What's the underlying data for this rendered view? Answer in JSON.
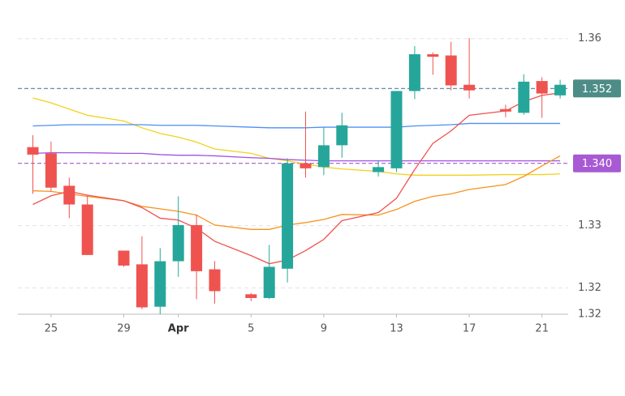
{
  "chart_data": {
    "type": "candlestick",
    "x": [
      "Mar 24",
      "Mar 25",
      "Mar 26",
      "Mar 27",
      "Mar 29",
      "Mar 30",
      "Mar 31",
      "Apr 1",
      "Apr 2",
      "Apr 3",
      "Apr 5",
      "Apr 6",
      "Apr 7",
      "Apr 8",
      "Apr 9",
      "Apr 10",
      "Apr 12",
      "Apr 13",
      "Apr 14",
      "Apr 15",
      "Apr 16",
      "Apr 17",
      "Apr 19",
      "Apr 20",
      "Apr 21",
      "Apr 22"
    ],
    "open": [
      1.3426,
      1.3416,
      1.3364,
      1.3334,
      1.326,
      1.3238,
      1.317,
      1.3243,
      1.3301,
      1.323,
      1.319,
      1.3184,
      1.3231,
      1.34,
      1.3394,
      1.3429,
      1.3386,
      1.3392,
      1.3516,
      1.3575,
      1.3573,
      1.3526,
      1.3487,
      1.3481,
      1.3532,
      1.3509
    ],
    "high": [
      1.3445,
      1.3435,
      1.3377,
      1.3348,
      1.326,
      1.3283,
      1.3264,
      1.3347,
      1.3318,
      1.3243,
      1.3192,
      1.3269,
      1.3408,
      1.3483,
      1.3458,
      1.3481,
      1.3405,
      1.3516,
      1.3588,
      1.3578,
      1.3595,
      1.3601,
      1.3494,
      1.3543,
      1.3538,
      1.3534
    ],
    "low": [
      1.3351,
      1.3355,
      1.3312,
      1.3253,
      1.3234,
      1.3166,
      1.3158,
      1.3218,
      1.3182,
      1.3175,
      1.3179,
      1.3182,
      1.3209,
      1.3377,
      1.3381,
      1.3409,
      1.3379,
      1.3386,
      1.3503,
      1.3542,
      1.3517,
      1.3504,
      1.3474,
      1.3478,
      1.3473,
      1.3504
    ],
    "close": [
      1.3414,
      1.3361,
      1.3334,
      1.3253,
      1.3236,
      1.3169,
      1.3243,
      1.3301,
      1.3227,
      1.3195,
      1.3184,
      1.3234,
      1.34,
      1.3392,
      1.3429,
      1.3461,
      1.3394,
      1.3516,
      1.3575,
      1.3571,
      1.3525,
      1.3517,
      1.3483,
      1.3531,
      1.3512,
      1.3526
    ],
    "up_color": "#26a69a",
    "down_color": "#ef5350",
    "lines": [
      {
        "color": "#f2d21b",
        "values": [
          1.3505,
          1.3497,
          1.3487,
          1.3477,
          1.3468,
          1.3457,
          1.3448,
          1.3442,
          1.3434,
          1.3423,
          1.3416,
          1.3408,
          1.3404,
          1.3399,
          1.3394,
          1.3391,
          1.3387,
          1.3383,
          1.3381,
          1.3381,
          1.3381,
          1.3381,
          1.3382,
          1.3382,
          1.3382,
          1.3383
        ]
      },
      {
        "color": "#4e8ff0",
        "values": [
          1.346,
          1.3461,
          1.3462,
          1.3462,
          1.3462,
          1.3462,
          1.3461,
          1.3461,
          1.3461,
          1.346,
          1.3458,
          1.3457,
          1.3457,
          1.3457,
          1.3458,
          1.3458,
          1.3458,
          1.3458,
          1.346,
          1.3461,
          1.3462,
          1.3464,
          1.3464,
          1.3464,
          1.3464,
          1.3464
        ]
      },
      {
        "color": "#a052e6",
        "values": [
          1.3416,
          1.3417,
          1.3417,
          1.3417,
          1.3416,
          1.3416,
          1.3414,
          1.3413,
          1.3413,
          1.3412,
          1.3409,
          1.3408,
          1.3406,
          1.3405,
          1.3404,
          1.3404,
          1.3404,
          1.3404,
          1.3404,
          1.3404,
          1.3404,
          1.3404,
          1.3404,
          1.3404,
          1.3404,
          1.3404
        ]
      },
      {
        "color": "#f7931e",
        "values": [
          1.3356,
          1.3355,
          1.3351,
          1.3347,
          1.334,
          1.3331,
          1.3327,
          1.3323,
          1.3317,
          1.3301,
          1.3294,
          1.3294,
          1.3301,
          1.3305,
          1.331,
          1.3318,
          1.3317,
          1.3326,
          1.3339,
          1.3347,
          1.3351,
          1.3358,
          1.3366,
          1.3379,
          1.3396,
          1.3412
        ]
      },
      {
        "color": "#ef5350",
        "values": [
          1.3334,
          1.3348,
          1.3355,
          1.3349,
          1.334,
          1.3329,
          1.3312,
          1.3309,
          1.3296,
          1.3275,
          1.3252,
          1.3239,
          1.3245,
          1.326,
          1.3278,
          1.3308,
          1.3321,
          1.3344,
          1.339,
          1.3432,
          1.3452,
          1.3477,
          1.3484,
          1.3499,
          1.3509,
          1.3513
        ]
      }
    ],
    "price_lines": [
      {
        "value": 1.352,
        "color": "#4e8c87",
        "line_color": "#5b7f98"
      },
      {
        "value": 1.34,
        "label": "1.340",
        "color": "#a75ad3",
        "line_color": "#a35cc4"
      }
    ],
    "ylim": [
      1.3158,
      1.3649
    ],
    "yticks": [
      1.36,
      1.33,
      1.32,
      {
        "value": 1.3158,
        "label": "1.32"
      }
    ],
    "xticks": [
      {
        "value": "Mar 25",
        "label": "25"
      },
      {
        "value": "Mar 29",
        "label": "29"
      },
      {
        "value": "Apr 1",
        "label": "Apr"
      },
      {
        "value": "Apr 5",
        "label": "5"
      },
      {
        "value": "Apr 9",
        "label": "9"
      },
      {
        "value": "Apr 13",
        "label": "13"
      },
      {
        "value": "Apr 17",
        "label": "17"
      },
      {
        "value": "Apr 21",
        "label": "21"
      }
    ],
    "grid": true
  }
}
